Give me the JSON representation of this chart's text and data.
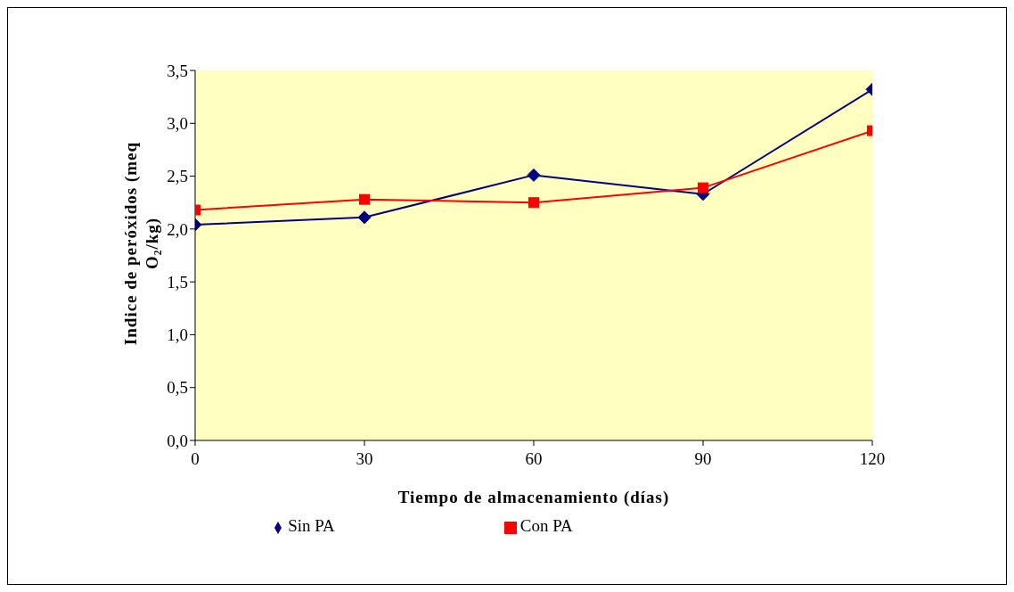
{
  "chart_data": {
    "type": "line",
    "xlabel": "Tiempo de almacenamiento (días)",
    "ylabel": "Indice de peróxidos (meq O₂/kg)",
    "x": [
      0,
      30,
      60,
      90,
      120
    ],
    "series": [
      {
        "name": "Sin PA",
        "color": "#000080",
        "marker": "diamond",
        "values": [
          2.04,
          2.11,
          2.51,
          2.33,
          3.32
        ]
      },
      {
        "name": "Con PA",
        "color": "#ff0000",
        "marker": "square",
        "values": [
          2.18,
          2.28,
          2.25,
          2.39,
          2.93
        ]
      }
    ],
    "xlim": [
      0,
      120
    ],
    "xticks": [
      0,
      30,
      60,
      90,
      120
    ],
    "ylim": [
      0,
      3.5
    ],
    "yticks": [
      {
        "value": 0,
        "label": "0,0"
      },
      {
        "value": 0.5,
        "label": "0,5"
      },
      {
        "value": 1,
        "label": "1,0"
      },
      {
        "value": 1.5,
        "label": "1,5"
      },
      {
        "value": 2,
        "label": "2,0"
      },
      {
        "value": 2.5,
        "label": "2,5"
      },
      {
        "value": 3,
        "label": "3,0"
      },
      {
        "value": 3.5,
        "label": "3,5"
      }
    ],
    "grid": false,
    "legend": "bottom"
  }
}
